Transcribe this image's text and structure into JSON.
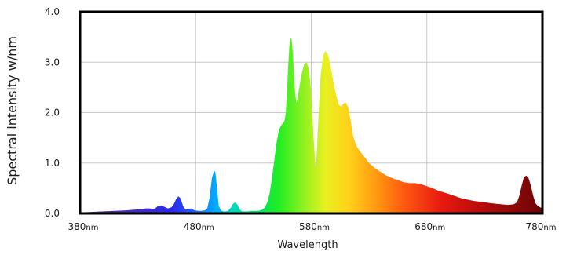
{
  "chart_data": {
    "type": "area",
    "title": "",
    "xlabel": "Wavelength",
    "ylabel": "Spectral intensity w/nm",
    "xlim": [
      380,
      780
    ],
    "ylim": [
      0,
      4
    ],
    "grid": true,
    "legend": "none",
    "x_ticks": [
      {
        "value": 380,
        "label": "380",
        "unit": "nm"
      },
      {
        "value": 480,
        "label": "480",
        "unit": "nm"
      },
      {
        "value": 580,
        "label": "580",
        "unit": "nm"
      },
      {
        "value": 680,
        "label": "680",
        "unit": "nm"
      },
      {
        "value": 780,
        "label": "780",
        "unit": "nm"
      }
    ],
    "y_ticks": [
      {
        "value": 0,
        "label": "0.0"
      },
      {
        "value": 1,
        "label": "1.0"
      },
      {
        "value": 2,
        "label": "2.0"
      },
      {
        "value": 3,
        "label": "3.0"
      },
      {
        "value": 4,
        "label": "4.0"
      }
    ],
    "series": [
      {
        "x": [
          380,
          390,
          400,
          410,
          420,
          425,
          430,
          434,
          437,
          440,
          443,
          445,
          447,
          450,
          453,
          456,
          459,
          461,
          463,
          465,
          467,
          469,
          471,
          473,
          476,
          479,
          482,
          485,
          488,
          490,
          492,
          494,
          496,
          497,
          498,
          500,
          502,
          504,
          506,
          508,
          510,
          512,
          514,
          516,
          518,
          520,
          522,
          524,
          526,
          528,
          530,
          532,
          534,
          536,
          538,
          540,
          542,
          544,
          546,
          548,
          550,
          552,
          554,
          556,
          557,
          558,
          559,
          560,
          561,
          562,
          563,
          564,
          565,
          566,
          567,
          568,
          569,
          570,
          572,
          574,
          576,
          578,
          580,
          582,
          584,
          586,
          588,
          590,
          592,
          594,
          596,
          598,
          600,
          602,
          604,
          606,
          608,
          610,
          612,
          614,
          616,
          618,
          620,
          625,
          630,
          635,
          640,
          645,
          650,
          655,
          660,
          665,
          670,
          675,
          680,
          685,
          690,
          700,
          710,
          720,
          730,
          740,
          750,
          755,
          758,
          760,
          762,
          764,
          766,
          768,
          770,
          772,
          774,
          776,
          778,
          780
        ],
        "y": [
          0.02,
          0.03,
          0.04,
          0.05,
          0.06,
          0.07,
          0.08,
          0.09,
          0.1,
          0.1,
          0.09,
          0.1,
          0.14,
          0.16,
          0.13,
          0.1,
          0.12,
          0.18,
          0.28,
          0.34,
          0.3,
          0.15,
          0.08,
          0.08,
          0.1,
          0.06,
          0.05,
          0.05,
          0.06,
          0.1,
          0.3,
          0.7,
          0.85,
          0.82,
          0.6,
          0.15,
          0.06,
          0.04,
          0.04,
          0.05,
          0.1,
          0.18,
          0.22,
          0.18,
          0.08,
          0.04,
          0.04,
          0.04,
          0.04,
          0.05,
          0.05,
          0.05,
          0.05,
          0.06,
          0.08,
          0.12,
          0.22,
          0.4,
          0.7,
          1.05,
          1.4,
          1.65,
          1.75,
          1.8,
          1.85,
          2.0,
          2.4,
          2.9,
          3.3,
          3.48,
          3.45,
          3.2,
          2.8,
          2.4,
          2.2,
          2.25,
          2.4,
          2.55,
          2.8,
          2.97,
          3.0,
          2.85,
          2.4,
          1.5,
          0.85,
          1.8,
          2.7,
          3.1,
          3.22,
          3.18,
          3.0,
          2.75,
          2.5,
          2.3,
          2.15,
          2.12,
          2.18,
          2.2,
          2.1,
          1.85,
          1.55,
          1.4,
          1.3,
          1.15,
          1.0,
          0.9,
          0.82,
          0.75,
          0.7,
          0.66,
          0.62,
          0.6,
          0.6,
          0.58,
          0.54,
          0.5,
          0.45,
          0.38,
          0.3,
          0.25,
          0.22,
          0.19,
          0.17,
          0.18,
          0.22,
          0.35,
          0.55,
          0.72,
          0.75,
          0.7,
          0.55,
          0.35,
          0.2,
          0.15,
          0.12,
          0.1
        ]
      }
    ]
  }
}
